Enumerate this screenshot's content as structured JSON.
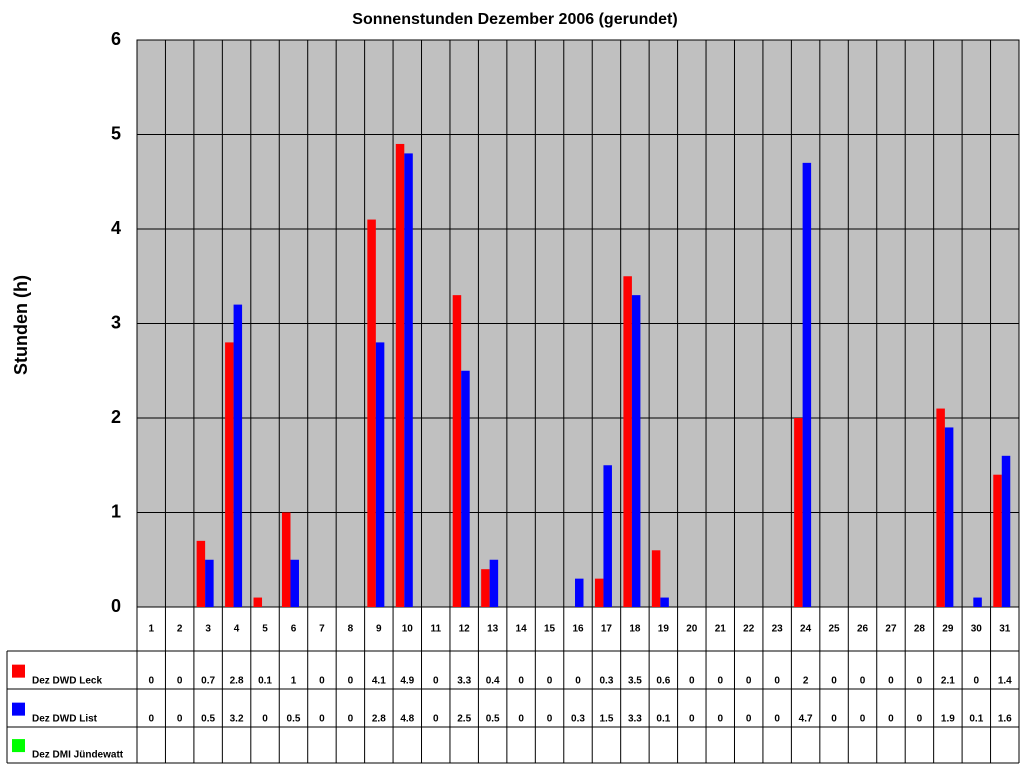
{
  "chart_data": {
    "type": "bar",
    "title": "Sonnenstunden Dezember 2006 (gerundet)",
    "y_label": "Stunden (h)",
    "categories": [
      "1",
      "2",
      "3",
      "4",
      "5",
      "6",
      "7",
      "8",
      "9",
      "10",
      "11",
      "12",
      "13",
      "14",
      "15",
      "16",
      "17",
      "18",
      "19",
      "20",
      "21",
      "22",
      "23",
      "24",
      "25",
      "26",
      "27",
      "28",
      "29",
      "30",
      "31"
    ],
    "series": [
      {
        "name": "Dez DWD Leck",
        "color": "#ff0000",
        "values": [
          0,
          0,
          0.7,
          2.8,
          0.1,
          1,
          0,
          0,
          4.1,
          4.9,
          0,
          3.3,
          0.4,
          0,
          0,
          0,
          0.3,
          3.5,
          0.6,
          0,
          0,
          0,
          0,
          2,
          0,
          0,
          0,
          0,
          2.1,
          0,
          1.4
        ]
      },
      {
        "name": "Dez DWD List",
        "color": "#0000ff",
        "values": [
          0,
          0,
          0.5,
          3.2,
          0,
          0.5,
          0,
          0,
          2.8,
          4.8,
          0,
          2.5,
          0.5,
          0,
          0,
          0.3,
          1.5,
          3.3,
          0.1,
          0,
          0,
          0,
          0,
          4.7,
          0,
          0,
          0,
          0,
          1.9,
          0.1,
          1.6
        ]
      },
      {
        "name": "Dez DMI Jündewatt",
        "color": "#00ff00",
        "values": [
          null,
          null,
          null,
          null,
          null,
          null,
          null,
          null,
          null,
          null,
          null,
          null,
          null,
          null,
          null,
          null,
          null,
          null,
          null,
          null,
          null,
          null,
          null,
          null,
          null,
          null,
          null,
          null,
          null,
          null,
          null
        ]
      }
    ],
    "ylim": [
      0,
      6
    ],
    "yticks": [
      0,
      1,
      2,
      3,
      4,
      5,
      6
    ],
    "grid": true
  }
}
